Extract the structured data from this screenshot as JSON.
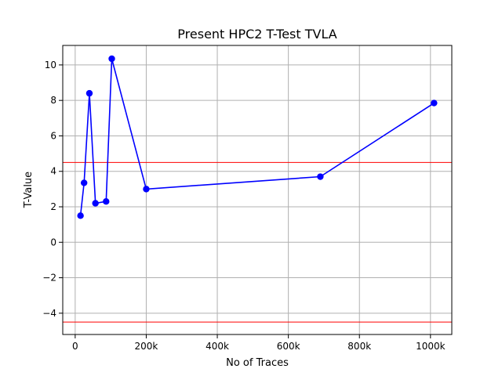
{
  "chart_data": {
    "type": "line",
    "title": "Present HPC2 T-Test TVLA",
    "xlabel": "No of Traces",
    "ylabel": "T-Value",
    "xlim": [
      -35000,
      1060000
    ],
    "ylim": [
      -5.2,
      11.1
    ],
    "xticks": [
      0,
      200000,
      400000,
      600000,
      800000,
      1000000
    ],
    "xtick_labels": [
      "0",
      "200k",
      "400k",
      "600k",
      "800k",
      "1000k"
    ],
    "yticks": [
      -4,
      -2,
      0,
      2,
      4,
      6,
      8,
      10
    ],
    "ytick_labels": [
      "−4",
      "−2",
      "0",
      "2",
      "4",
      "6",
      "8",
      "10"
    ],
    "grid": true,
    "series": [
      {
        "color": "#0000ff",
        "marker": "circle",
        "x": [
          15000,
          25000,
          40000,
          57000,
          87000,
          103000,
          200000,
          690000,
          1010000
        ],
        "y": [
          1.5,
          3.35,
          8.4,
          2.2,
          2.3,
          10.35,
          3.0,
          3.7,
          7.85
        ]
      }
    ],
    "threshold_lines": [
      {
        "y": 4.5,
        "color": "#ff0000"
      },
      {
        "y": -4.5,
        "color": "#ff0000"
      }
    ]
  }
}
